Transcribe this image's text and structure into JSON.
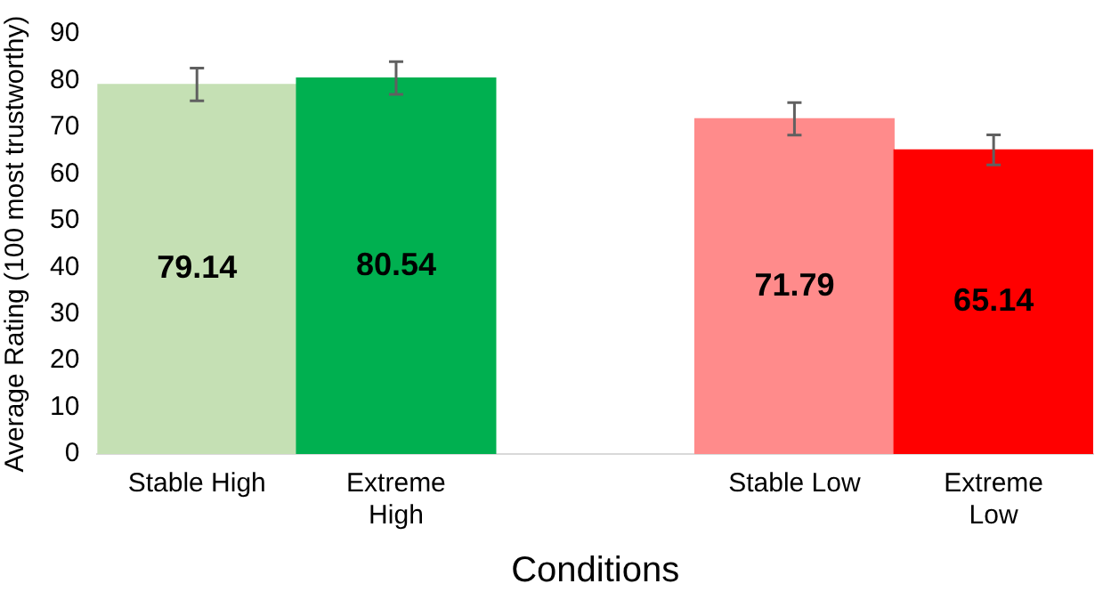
{
  "chart_data": {
    "type": "bar",
    "xlabel": "Conditions",
    "ylabel": "Average Rating (100 most trustworthy)",
    "categories": [
      "Stable High",
      "Extreme\nHigh",
      null,
      "Stable Low",
      "Extreme\nLow"
    ],
    "values": [
      79.14,
      80.54,
      null,
      71.79,
      65.14
    ],
    "colors": [
      "#c5e0b4",
      "#00b050",
      null,
      "#ff8b8b",
      "#ff0000"
    ],
    "errors": [
      3.5,
      3.5,
      null,
      3.5,
      3.2
    ],
    "ylim": [
      0,
      90
    ],
    "yticks": [
      0,
      10,
      20,
      30,
      40,
      50,
      60,
      70,
      80,
      90
    ],
    "grid": false,
    "data_labels": true
  }
}
